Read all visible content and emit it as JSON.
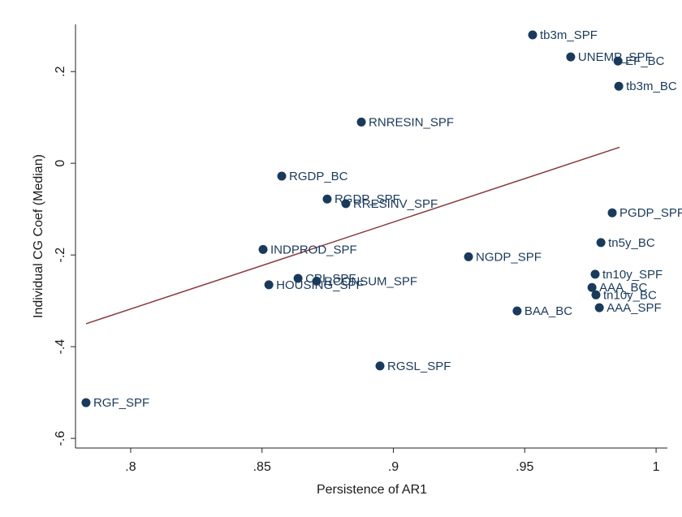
{
  "chart_data": {
    "type": "scatter",
    "x_label": "Persistence of AR1",
    "y_label": "Individual CG Coef (Median)",
    "labels": [
      "tb3m_SPF",
      "UNEMP_SPF",
      "EF_BC",
      "tb3m_BC",
      "RNRESIN_SPF",
      "RGDP_BC",
      "RGDP_SPF",
      "RRESINV_SPF",
      "PGDP_SPF",
      "tn5y_BC",
      "INDPROD_SPF",
      "NGDP_SPF",
      "tn10y_SPF",
      "CPI_SPF",
      "RCONSUM_SPF",
      "HOUSING_SPF",
      "AAA_BC",
      "tn10y_BC",
      "BAA_BC",
      "AAA_SPF",
      "RGSL_SPF",
      "RGF_SPF"
    ],
    "x": [
      0.953,
      0.9675,
      0.9855,
      0.9858,
      0.8878,
      0.8575,
      0.8748,
      0.8819,
      0.9833,
      0.979,
      0.8504,
      0.9286,
      0.9768,
      0.8637,
      0.8708,
      0.8526,
      0.9756,
      0.9771,
      0.9471,
      0.9784,
      0.8949,
      0.783
    ],
    "values": [
      0.28,
      0.232,
      0.223,
      0.168,
      0.09,
      -0.028,
      -0.078,
      -0.088,
      -0.108,
      -0.173,
      -0.188,
      -0.204,
      -0.242,
      -0.251,
      -0.257,
      -0.265,
      -0.271,
      -0.287,
      -0.322,
      -0.315,
      -0.442,
      -0.522
    ],
    "color": "#1a3a5c",
    "fit_line": {
      "x": [
        0.783,
        0.9861
      ],
      "y": [
        -0.35,
        0.035
      ],
      "color": "#8b3a3a"
    },
    "xlim": [
      0.779,
      1.0043
    ],
    "ylim": [
      -0.621,
      0.303
    ],
    "xticks": [
      {
        "value": 0.8,
        "label": ".8"
      },
      {
        "value": 0.85,
        "label": ".85"
      },
      {
        "value": 0.9,
        "label": ".9"
      },
      {
        "value": 0.95,
        "label": ".95"
      },
      1
    ],
    "yticks": [
      {
        "value": 0.2,
        "label": ".2"
      },
      0,
      {
        "value": -0.2,
        "label": "-.2"
      },
      {
        "value": -0.4,
        "label": "-.4"
      },
      {
        "value": -0.6,
        "label": "-.6"
      }
    ]
  }
}
